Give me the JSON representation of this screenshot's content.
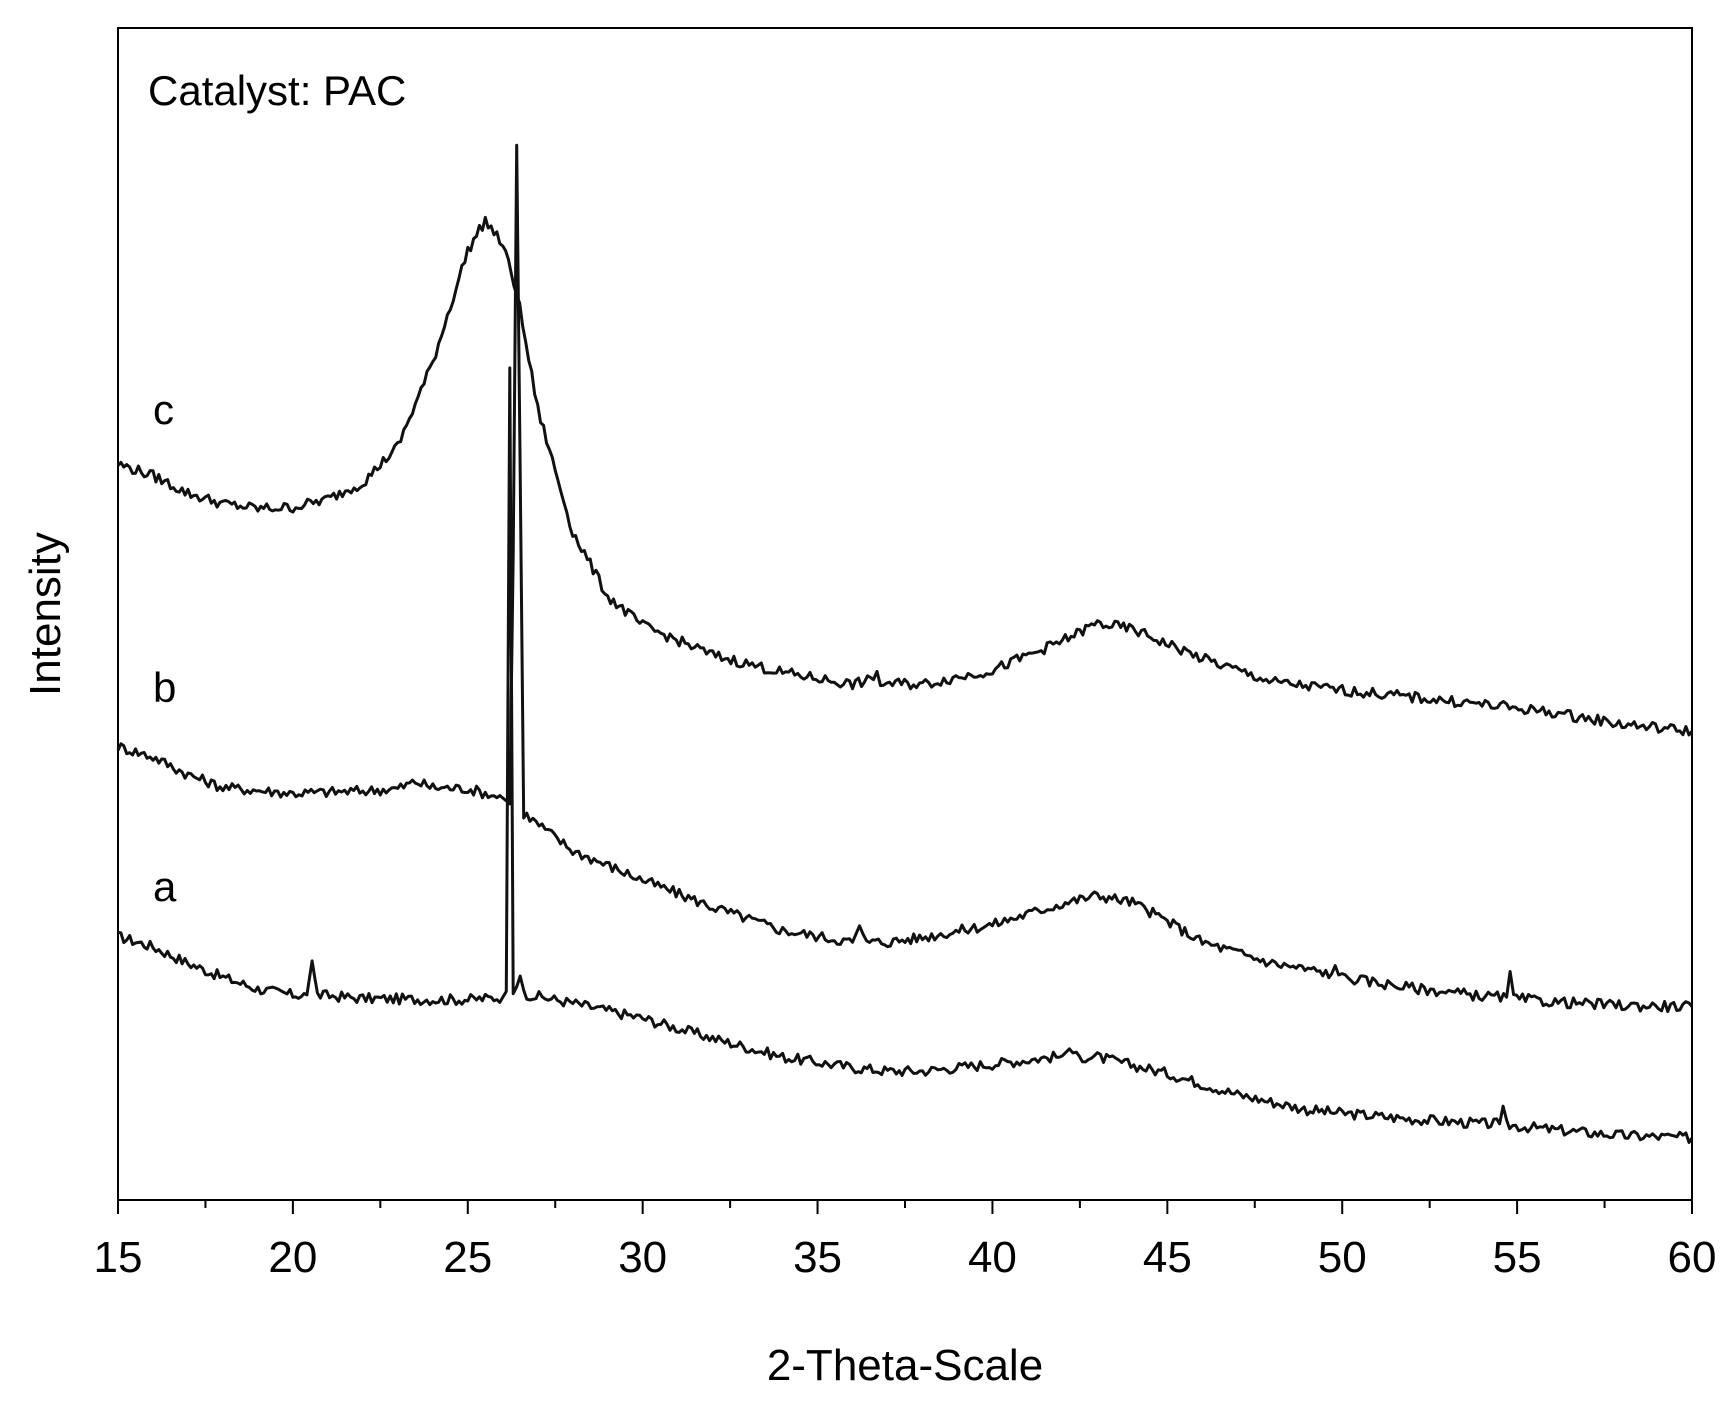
{
  "chart_data": {
    "type": "line",
    "annotation": "Catalyst: PAC",
    "xlabel": "2-Theta-Scale",
    "ylabel": "Intensity",
    "xlim": [
      15,
      60
    ],
    "ylim": [
      0,
      100
    ],
    "x_ticks": [
      15,
      20,
      25,
      30,
      35,
      40,
      45,
      50,
      55,
      60
    ],
    "x_minor_step": 2.5,
    "y_ticks_shown": false,
    "grid": false,
    "legend": "none",
    "line_color": "#111111",
    "series": [
      {
        "label": "a",
        "label_at": [
          16.0,
          25.5
        ],
        "points": [
          [
            15,
            22.5
          ],
          [
            16,
            21.6
          ],
          [
            17,
            20.2
          ],
          [
            18,
            19.0
          ],
          [
            19,
            18.0
          ],
          [
            20,
            17.5
          ],
          [
            20.4,
            17.5
          ],
          [
            20.55,
            20.4
          ],
          [
            20.7,
            17.5
          ],
          [
            22,
            17.2
          ],
          [
            24,
            17.1
          ],
          [
            25,
            17.1
          ],
          [
            26,
            17.3
          ],
          [
            26.1,
            17.8
          ],
          [
            26.2,
            71.0
          ],
          [
            26.3,
            17.6
          ],
          [
            26.4,
            18.2
          ],
          [
            26.5,
            19.1
          ],
          [
            26.6,
            17.6
          ],
          [
            28,
            16.8
          ],
          [
            30,
            15.5
          ],
          [
            32,
            13.8
          ],
          [
            34,
            12.2
          ],
          [
            36,
            11.3
          ],
          [
            37,
            11.0
          ],
          [
            38,
            11.0
          ],
          [
            40,
            11.6
          ],
          [
            42,
            12.3
          ],
          [
            42.2,
            12.9
          ],
          [
            42.4,
            12.2
          ],
          [
            43,
            12.2
          ],
          [
            45,
            10.8
          ],
          [
            47,
            9.0
          ],
          [
            49,
            7.7
          ],
          [
            50,
            7.4
          ],
          [
            52,
            6.9
          ],
          [
            54,
            6.5
          ],
          [
            54.5,
            6.5
          ],
          [
            54.6,
            8.0
          ],
          [
            54.7,
            6.4
          ],
          [
            56,
            6.0
          ],
          [
            58,
            5.5
          ],
          [
            60,
            5.3
          ]
        ]
      },
      {
        "label": "b",
        "label_at": [
          16.0,
          42.5
        ],
        "points": [
          [
            15,
            38.7
          ],
          [
            16,
            37.8
          ],
          [
            17,
            36.3
          ],
          [
            18,
            35.2
          ],
          [
            20,
            34.7
          ],
          [
            22,
            34.9
          ],
          [
            23,
            35.1
          ],
          [
            23.5,
            35.7
          ],
          [
            24,
            35.2
          ],
          [
            25,
            35.1
          ],
          [
            26,
            34.3
          ],
          [
            26.2,
            33.8
          ],
          [
            26.3,
            55.0
          ],
          [
            26.4,
            90.0
          ],
          [
            26.5,
            62.0
          ],
          [
            26.6,
            33.0
          ],
          [
            28,
            29.8
          ],
          [
            30,
            27.3
          ],
          [
            32,
            25.0
          ],
          [
            34,
            23.0
          ],
          [
            36,
            22.0
          ],
          [
            36.2,
            23.4
          ],
          [
            36.4,
            22.0
          ],
          [
            37,
            22.0
          ],
          [
            38,
            22.4
          ],
          [
            40,
            23.5
          ],
          [
            42,
            25.3
          ],
          [
            43,
            26.0
          ],
          [
            44,
            25.4
          ],
          [
            45,
            23.8
          ],
          [
            46,
            22.0
          ],
          [
            48,
            20.2
          ],
          [
            49.7,
            19.3
          ],
          [
            49.8,
            20.0
          ],
          [
            49.9,
            19.2
          ],
          [
            50,
            19.0
          ],
          [
            52,
            18.1
          ],
          [
            54,
            17.4
          ],
          [
            54.7,
            17.3
          ],
          [
            54.8,
            19.5
          ],
          [
            54.9,
            17.2
          ],
          [
            56,
            16.9
          ],
          [
            58,
            16.6
          ],
          [
            60,
            16.5
          ]
        ]
      },
      {
        "label": "c",
        "label_at": [
          16.0,
          66.2
        ],
        "points": [
          [
            15,
            62.8
          ],
          [
            16,
            61.8
          ],
          [
            17,
            60.3
          ],
          [
            18,
            59.4
          ],
          [
            19,
            59.0
          ],
          [
            20,
            59.1
          ],
          [
            21,
            59.8
          ],
          [
            22,
            61.2
          ],
          [
            23,
            64.3
          ],
          [
            24,
            71.5
          ],
          [
            25,
            81.0
          ],
          [
            25.5,
            83.6
          ],
          [
            26,
            81.5
          ],
          [
            26.4,
            77.5
          ],
          [
            27,
            67.5
          ],
          [
            28,
            57.0
          ],
          [
            29,
            51.5
          ],
          [
            30,
            49.0
          ],
          [
            32,
            46.5
          ],
          [
            34,
            45.0
          ],
          [
            36,
            44.0
          ],
          [
            36.6,
            44.4
          ],
          [
            36.7,
            45.1
          ],
          [
            36.8,
            44.1
          ],
          [
            38,
            44.0
          ],
          [
            40,
            45.2
          ],
          [
            42,
            47.7
          ],
          [
            43,
            49.2
          ],
          [
            44,
            48.7
          ],
          [
            46,
            46.2
          ],
          [
            48,
            44.2
          ],
          [
            50,
            43.5
          ],
          [
            52,
            42.9
          ],
          [
            54,
            42.3
          ],
          [
            56,
            41.6
          ],
          [
            58,
            40.6
          ],
          [
            60,
            40.0
          ]
        ]
      }
    ]
  }
}
